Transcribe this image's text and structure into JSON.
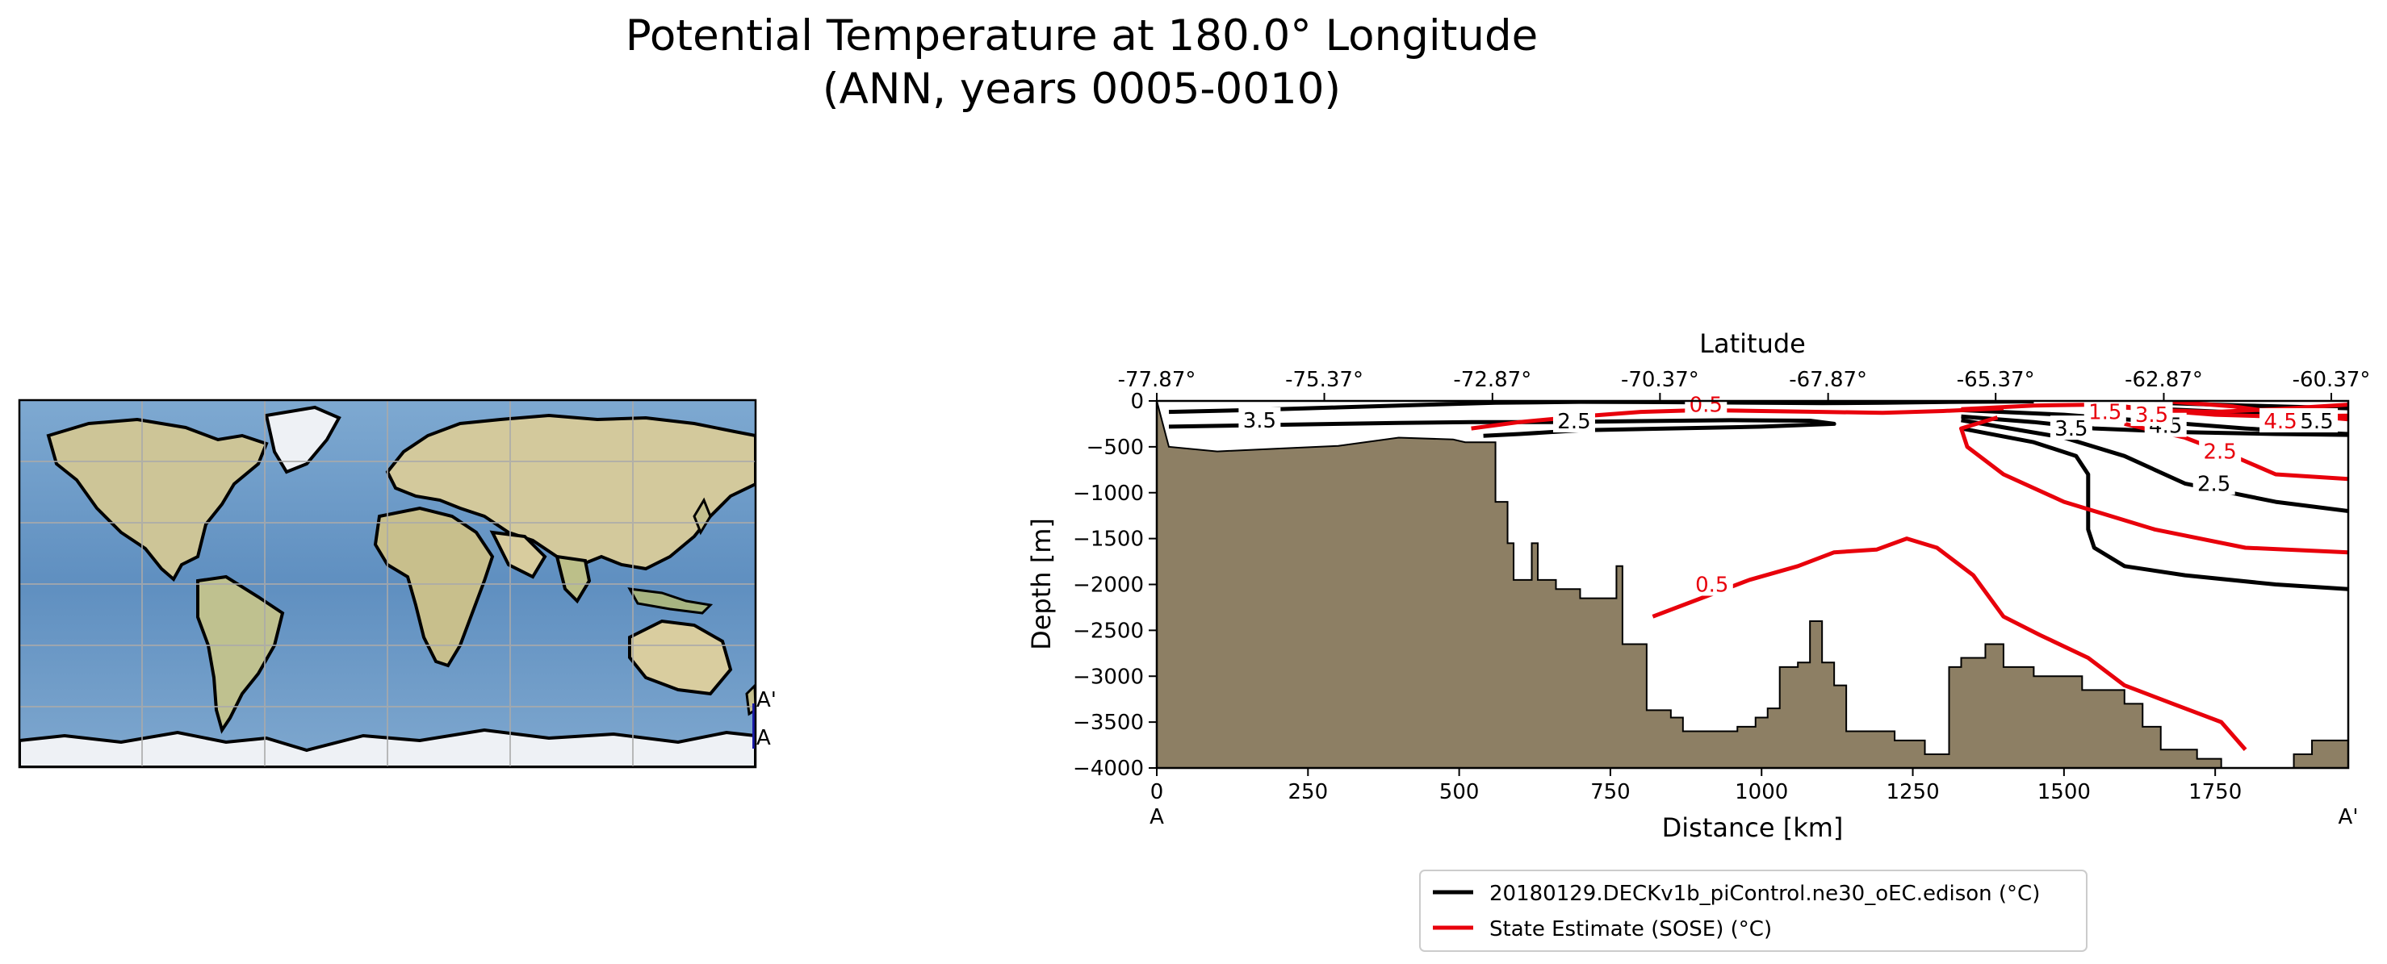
{
  "figure": {
    "title_line1": "Potential Temperature at 180.0° Longitude",
    "title_line2": "(ANN, years 0005-0010)"
  },
  "map": {
    "marker_start": "A",
    "marker_end": "A'",
    "colors": {
      "ocean": "#6e9ac2",
      "land": "#cfc79b",
      "ice": "#e9edf2",
      "section": "#1a1aa8"
    }
  },
  "chart_data": {
    "type": "contour-section",
    "title": "Potential Temperature at 180.0° Longitude",
    "xlabel": "Distance [km]",
    "ylabel": "Depth [m]",
    "top_xlabel": "Latitude",
    "xlim": [
      0,
      1970
    ],
    "ylim": [
      -4000,
      0
    ],
    "x_ticks": [
      0,
      250,
      500,
      750,
      1000,
      1250,
      1500,
      1750
    ],
    "x_tick_labels": [
      "0",
      "250",
      "500",
      "750",
      "1000",
      "1250",
      "1500",
      "1750"
    ],
    "y_ticks": [
      0,
      -500,
      -1000,
      -1500,
      -2000,
      -2500,
      -3000,
      -3500,
      -4000
    ],
    "y_tick_labels": [
      "0",
      "−500",
      "−1000",
      "−1500",
      "−2000",
      "−2500",
      "−3000",
      "−3500",
      "−4000"
    ],
    "top_ticks": [
      0,
      277,
      555,
      832,
      1110,
      1387,
      1665,
      1942
    ],
    "top_tick_labels": [
      "-77.87°",
      "-75.37°",
      "-72.87°",
      "-70.37°",
      "-67.87°",
      "-65.37°",
      "-62.87°",
      "-60.37°"
    ],
    "section_end_labels": {
      "start": "A",
      "end": "A'"
    },
    "colors": {
      "model": "#000000",
      "obs": "#e8000b",
      "bathymetry": "#8d7f64"
    },
    "bathymetry": [
      [
        0,
        0
      ],
      [
        20,
        -500
      ],
      [
        100,
        -550
      ],
      [
        200,
        -520
      ],
      [
        300,
        -490
      ],
      [
        400,
        -400
      ],
      [
        490,
        -420
      ],
      [
        490,
        -420
      ],
      [
        510,
        -450
      ],
      [
        560,
        -450
      ],
      [
        560,
        -1100
      ],
      [
        580,
        -1100
      ],
      [
        580,
        -1550
      ],
      [
        590,
        -1550
      ],
      [
        590,
        -1950
      ],
      [
        620,
        -1950
      ],
      [
        620,
        -1550
      ],
      [
        630,
        -1550
      ],
      [
        630,
        -1950
      ],
      [
        660,
        -1950
      ],
      [
        660,
        -2050
      ],
      [
        700,
        -2050
      ],
      [
        700,
        -2150
      ],
      [
        760,
        -2150
      ],
      [
        760,
        -1800
      ],
      [
        770,
        -1800
      ],
      [
        770,
        -2650
      ],
      [
        810,
        -2650
      ],
      [
        810,
        -3370
      ],
      [
        850,
        -3370
      ],
      [
        850,
        -3450
      ],
      [
        870,
        -3450
      ],
      [
        870,
        -3600
      ],
      [
        960,
        -3600
      ],
      [
        960,
        -3550
      ],
      [
        990,
        -3550
      ],
      [
        990,
        -3450
      ],
      [
        1010,
        -3450
      ],
      [
        1010,
        -3350
      ],
      [
        1030,
        -3350
      ],
      [
        1030,
        -2900
      ],
      [
        1060,
        -2900
      ],
      [
        1060,
        -2850
      ],
      [
        1080,
        -2850
      ],
      [
        1080,
        -2400
      ],
      [
        1100,
        -2400
      ],
      [
        1100,
        -2850
      ],
      [
        1120,
        -2850
      ],
      [
        1120,
        -3100
      ],
      [
        1140,
        -3100
      ],
      [
        1140,
        -3600
      ],
      [
        1220,
        -3600
      ],
      [
        1220,
        -3700
      ],
      [
        1270,
        -3700
      ],
      [
        1270,
        -3850
      ],
      [
        1310,
        -3850
      ],
      [
        1310,
        -2900
      ],
      [
        1330,
        -2900
      ],
      [
        1330,
        -2800
      ],
      [
        1370,
        -2800
      ],
      [
        1370,
        -2650
      ],
      [
        1400,
        -2650
      ],
      [
        1400,
        -2900
      ],
      [
        1450,
        -2900
      ],
      [
        1450,
        -3000
      ],
      [
        1530,
        -3000
      ],
      [
        1530,
        -3150
      ],
      [
        1600,
        -3150
      ],
      [
        1600,
        -3300
      ],
      [
        1630,
        -3300
      ],
      [
        1630,
        -3550
      ],
      [
        1660,
        -3550
      ],
      [
        1660,
        -3800
      ],
      [
        1720,
        -3800
      ],
      [
        1720,
        -3900
      ],
      [
        1760,
        -3900
      ],
      [
        1760,
        -4000
      ],
      [
        1970,
        -4000
      ],
      [
        1970,
        -3700
      ],
      [
        1910,
        -3700
      ],
      [
        1910,
        -3850
      ],
      [
        1880,
        -3850
      ],
      [
        1880,
        -4000
      ]
    ],
    "series": [
      {
        "name": "20180129.DECKv1b_piControl.ne30_oEC.edison (°C)",
        "color": "#000000",
        "contours": [
          {
            "level": 3.5,
            "label_at": [
              170,
              -210
            ],
            "points": [
              [
                20,
                -120
              ],
              [
                150,
                -100
              ],
              [
                300,
                -70
              ],
              [
                450,
                -40
              ],
              [
                560,
                -20
              ],
              [
                700,
                -10
              ],
              [
                900,
                -15
              ],
              [
                1100,
                -25
              ],
              [
                1200,
                -20
              ],
              [
                1330,
                -10
              ],
              [
                1450,
                -5
              ]
            ]
          },
          {
            "level": 3.5,
            "label_at": [
              1512,
              -300
            ],
            "points": [
              [
                1330,
                -170
              ],
              [
                1450,
                -230
              ],
              [
                1550,
                -300
              ],
              [
                1700,
                -340
              ],
              [
                1850,
                -360
              ],
              [
                1970,
                -370
              ]
            ]
          },
          {
            "level": 2.5,
            "label_at": [
              690,
              -220
            ],
            "points": [
              [
                20,
                -280
              ],
              [
                200,
                -260
              ],
              [
                400,
                -240
              ],
              [
                520,
                -230
              ],
              [
                650,
                -230
              ],
              [
                800,
                -220
              ],
              [
                950,
                -210
              ],
              [
                1080,
                -215
              ],
              [
                1120,
                -250
              ],
              [
                1000,
                -280
              ],
              [
                850,
                -300
              ],
              [
                700,
                -320
              ],
              [
                600,
                -360
              ],
              [
                540,
                -380
              ]
            ]
          },
          {
            "level": 2.5,
            "label_at": [
              1748,
              -900
            ],
            "points": [
              [
                1330,
                -300
              ],
              [
                1450,
                -450
              ],
              [
                1520,
                -600
              ],
              [
                1540,
                -800
              ],
              [
                1540,
                -1400
              ],
              [
                1550,
                -1600
              ],
              [
                1600,
                -1800
              ],
              [
                1700,
                -1900
              ],
              [
                1850,
                -2000
              ],
              [
                1970,
                -2050
              ]
            ]
          },
          {
            "level": 2.5,
            "label_at": [
              0,
              0
            ],
            "points": [
              [
                1330,
                -210
              ],
              [
                1500,
                -400
              ],
              [
                1600,
                -600
              ],
              [
                1700,
                -900
              ],
              [
                1850,
                -1100
              ],
              [
                1970,
                -1200
              ]
            ]
          },
          {
            "level": 4.5,
            "label_at": [
              1668,
              -270
            ],
            "points": [
              [
                1330,
                -100
              ],
              [
                1500,
                -150
              ],
              [
                1600,
                -200
              ],
              [
                1700,
                -250
              ],
              [
                1800,
                -300
              ],
              [
                1900,
                -340
              ],
              [
                1970,
                -360
              ]
            ]
          },
          {
            "level": 5.5,
            "label_at": [
              1918,
              -220
            ],
            "points": [
              [
                1560,
                -60
              ],
              [
                1700,
                -100
              ],
              [
                1800,
                -130
              ],
              [
                1900,
                -160
              ],
              [
                1970,
                -170
              ]
            ]
          },
          {
            "level": 5.5,
            "label_at": [
              0,
              0
            ],
            "points": [
              [
                1650,
                -20
              ],
              [
                1800,
                -50
              ],
              [
                1970,
                -80
              ]
            ]
          }
        ]
      },
      {
        "name": "State Estimate (SOSE) (°C)",
        "color": "#e8000b",
        "contours": [
          {
            "level": 0.5,
            "label_at": [
              908,
              -40
            ],
            "points": [
              [
                520,
                -300
              ],
              [
                600,
                -230
              ],
              [
                700,
                -170
              ],
              [
                800,
                -120
              ],
              [
                900,
                -100
              ],
              [
                1000,
                -110
              ],
              [
                1100,
                -120
              ],
              [
                1200,
                -130
              ],
              [
                1300,
                -110
              ],
              [
                1400,
                -80
              ]
            ]
          },
          {
            "level": 0.5,
            "label_at": [
              918,
              -2000
            ],
            "points": [
              [
                820,
                -2350
              ],
              [
                900,
                -2150
              ],
              [
                980,
                -1950
              ],
              [
                1060,
                -1800
              ],
              [
                1120,
                -1650
              ],
              [
                1190,
                -1620
              ],
              [
                1240,
                -1500
              ],
              [
                1290,
                -1600
              ],
              [
                1350,
                -1900
              ],
              [
                1400,
                -2350
              ],
              [
                1460,
                -2550
              ],
              [
                1540,
                -2800
              ],
              [
                1600,
                -3100
              ],
              [
                1680,
                -3300
              ],
              [
                1760,
                -3500
              ],
              [
                1800,
                -3800
              ]
            ]
          },
          {
            "level": 1.5,
            "label_at": [
              1568,
              -120
            ],
            "points": [
              [
                1330,
                -90
              ],
              [
                1450,
                -50
              ],
              [
                1550,
                -40
              ],
              [
                1650,
                -100
              ],
              [
                1750,
                -150
              ],
              [
                1850,
                -170
              ],
              [
                1970,
                -160
              ]
            ]
          },
          {
            "level": 1.5,
            "label_at": [
              0,
              0
            ],
            "points": [
              [
                1390,
                -180
              ],
              [
                1330,
                -300
              ],
              [
                1340,
                -500
              ],
              [
                1400,
                -800
              ],
              [
                1500,
                -1100
              ],
              [
                1650,
                -1400
              ],
              [
                1800,
                -1600
              ],
              [
                1970,
                -1650
              ]
            ]
          },
          {
            "level": 2.5,
            "label_at": [
              1758,
              -550
            ],
            "points": [
              [
                1600,
                -250
              ],
              [
                1700,
                -400
              ],
              [
                1780,
                -600
              ],
              [
                1850,
                -800
              ],
              [
                1970,
                -850
              ]
            ]
          },
          {
            "level": 3.5,
            "label_at": [
              1645,
              -150
            ],
            "points": [
              [
                1550,
                -20
              ],
              [
                1650,
                -100
              ],
              [
                1750,
                -120
              ],
              [
                1850,
                -90
              ],
              [
                1970,
                -40
              ]
            ]
          },
          {
            "level": 4.5,
            "label_at": [
              1858,
              -220
            ],
            "points": [
              [
                1680,
                -10
              ],
              [
                1780,
                -60
              ],
              [
                1880,
                -150
              ],
              [
                1970,
                -200
              ]
            ]
          }
        ]
      }
    ],
    "legend_position": "bottom-center"
  }
}
